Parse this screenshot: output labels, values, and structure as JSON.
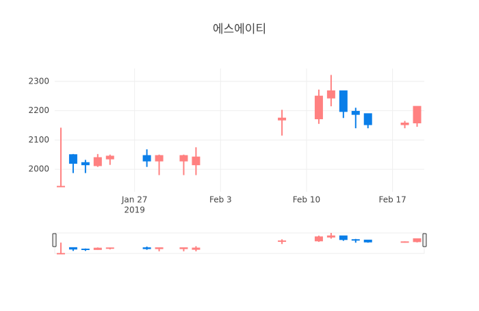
{
  "chart_data": {
    "type": "candlestick",
    "title": "에스에이티",
    "x": [
      "2019-01-21",
      "2019-01-22",
      "2019-01-23",
      "2019-01-24",
      "2019-01-25",
      "2019-01-28",
      "2019-01-29",
      "2019-01-31",
      "2019-02-01",
      "2019-02-08",
      "2019-02-11",
      "2019-02-12",
      "2019-02-13",
      "2019-02-14",
      "2019-02-15",
      "2019-02-18",
      "2019-02-19"
    ],
    "open": [
      1940,
      2050,
      2023,
      2012,
      2035,
      2047,
      2028,
      2028,
      2015,
      2168,
      2172,
      2243,
      2268,
      2198,
      2190,
      2152,
      2158
    ],
    "high": [
      2142,
      2052,
      2032,
      2052,
      2050,
      2068,
      2050,
      2050,
      2075,
      2203,
      2272,
      2322,
      2268,
      2210,
      2190,
      2165,
      2215
    ],
    "low": [
      1940,
      1987,
      1987,
      2008,
      2015,
      2008,
      1980,
      1980,
      1980,
      2115,
      2155,
      2215,
      2175,
      2140,
      2140,
      2140,
      2145
    ],
    "close": [
      1942,
      2020,
      2015,
      2040,
      2045,
      2028,
      2047,
      2047,
      2042,
      2175,
      2250,
      2268,
      2197,
      2187,
      2152,
      2158,
      2215
    ],
    "increasing_color": "#ff8080",
    "decreasing_color": "#0a7ee8",
    "xlim": [
      "2019-01-20T12:00:00Z",
      "2019-02-19T14:00:00Z"
    ],
    "ylim": [
      1923,
      2344
    ],
    "yticks": [
      2000,
      2100,
      2200,
      2300
    ],
    "xticks": [
      {
        "value": "2019-01-27",
        "label": "Jan 27",
        "sublabel": "2019"
      },
      {
        "value": "2019-02-03",
        "label": "Feb 3"
      },
      {
        "value": "2019-02-10",
        "label": "Feb 10"
      },
      {
        "value": "2019-02-17",
        "label": "Feb 17"
      }
    ],
    "grid": true,
    "rangeslider": true
  }
}
